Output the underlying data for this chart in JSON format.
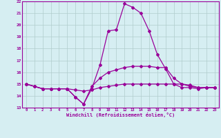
{
  "xlabel": "Windchill (Refroidissement éolien,°C)",
  "x": [
    0,
    1,
    2,
    3,
    4,
    5,
    6,
    7,
    8,
    9,
    10,
    11,
    12,
    13,
    14,
    15,
    16,
    17,
    18,
    19,
    20,
    21,
    22,
    23
  ],
  "line1": [
    15.0,
    14.8,
    14.6,
    14.6,
    14.6,
    14.6,
    13.9,
    13.3,
    14.6,
    16.6,
    19.5,
    19.6,
    21.8,
    21.5,
    21.0,
    19.5,
    17.5,
    16.3,
    15.0,
    14.7,
    14.7,
    14.6,
    14.7,
    14.7
  ],
  "line2": [
    15.0,
    14.8,
    14.6,
    14.6,
    14.6,
    14.6,
    13.9,
    13.3,
    14.8,
    15.5,
    16.0,
    16.2,
    16.4,
    16.5,
    16.5,
    16.5,
    16.4,
    16.4,
    15.5,
    15.0,
    14.8,
    14.7,
    14.7,
    14.7
  ],
  "line3": [
    15.0,
    14.8,
    14.6,
    14.6,
    14.6,
    14.6,
    14.5,
    14.4,
    14.5,
    14.7,
    14.8,
    14.9,
    15.0,
    15.0,
    15.0,
    15.0,
    15.0,
    15.0,
    15.0,
    15.0,
    14.9,
    14.7,
    14.7,
    14.7
  ],
  "line_color": "#990099",
  "bg_color": "#d6eef2",
  "grid_color": "#b0cccc",
  "ylim": [
    13,
    22
  ],
  "xlim": [
    -0.5,
    23.5
  ],
  "yticks": [
    13,
    14,
    15,
    16,
    17,
    18,
    19,
    20,
    21,
    22
  ],
  "xticks": [
    0,
    1,
    2,
    3,
    4,
    5,
    6,
    7,
    8,
    9,
    10,
    11,
    12,
    13,
    14,
    15,
    16,
    17,
    18,
    19,
    20,
    21,
    22,
    23
  ]
}
